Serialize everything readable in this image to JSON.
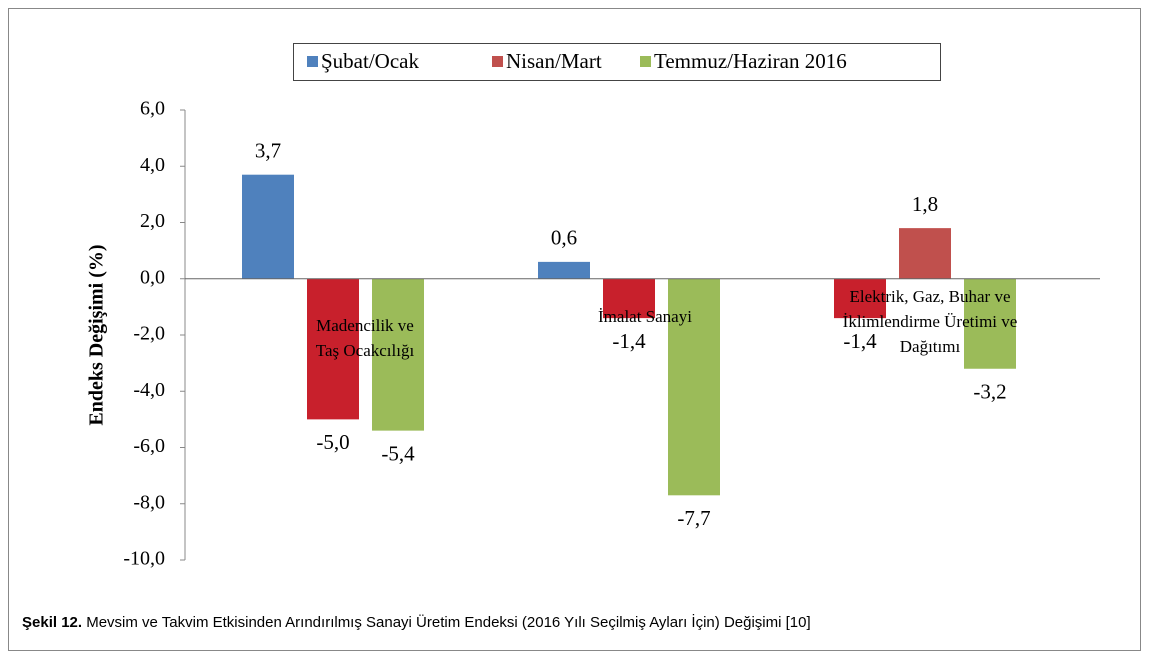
{
  "chart_data": {
    "type": "bar",
    "ylabel": "Endeks Değişimi (%)",
    "categories": [
      [
        "Madencilik ve",
        "Taş Ocakcılığı"
      ],
      [
        "İmalat Sanayi"
      ],
      [
        "Elektrik, Gaz, Buhar ve",
        "İklimlendirme Üretimi ve",
        "Dağıtımı"
      ]
    ],
    "series": [
      {
        "name": "Şubat/Ocak",
        "color": "#4f81bd",
        "colors": [
          "#4f81bd",
          "#4f81bd",
          "#c8202c"
        ],
        "values": [
          3.7,
          0.6,
          -1.4
        ],
        "value_labels": [
          "3,7",
          "0,6",
          "-1,4"
        ]
      },
      {
        "name": "Nisan/Mart",
        "color": "#c0504d",
        "colors": [
          "#c8202c",
          "#c8202c",
          "#c0504d"
        ],
        "values": [
          -5.0,
          -1.4,
          1.8
        ],
        "value_labels": [
          "-5,0",
          "-1,4",
          "1,8"
        ]
      },
      {
        "name": "Temmuz/Haziran 2016",
        "color": "#9bbb59",
        "colors": [
          "#9bbb59",
          "#9bbb59",
          "#9bbb59"
        ],
        "values": [
          -5.4,
          -7.7,
          -3.2
        ],
        "value_labels": [
          "-5,4",
          "-7,7",
          "-3,2"
        ]
      }
    ],
    "ylim": [
      -10,
      6
    ],
    "yticks": [
      {
        "value": -10,
        "label": "-10,0"
      },
      {
        "value": -8,
        "label": "-8,0"
      },
      {
        "value": -6,
        "label": "-6,0"
      },
      {
        "value": -4,
        "label": "-4,0"
      },
      {
        "value": -2,
        "label": "-2,0"
      },
      {
        "value": 0,
        "label": "0,0"
      },
      {
        "value": 2,
        "label": "2,0"
      },
      {
        "value": 4,
        "label": "4,0"
      },
      {
        "value": 6,
        "label": "6,0"
      }
    ],
    "legend": "top",
    "grid": false
  },
  "caption": {
    "label": "Şekil 12.",
    "text": "Mevsim ve Takvim Etkisinden Arındırılmış Sanayi Üretim Endeksi (2016 Yılı Seçilmiş Ayları İçin) Değişimi [10]"
  }
}
